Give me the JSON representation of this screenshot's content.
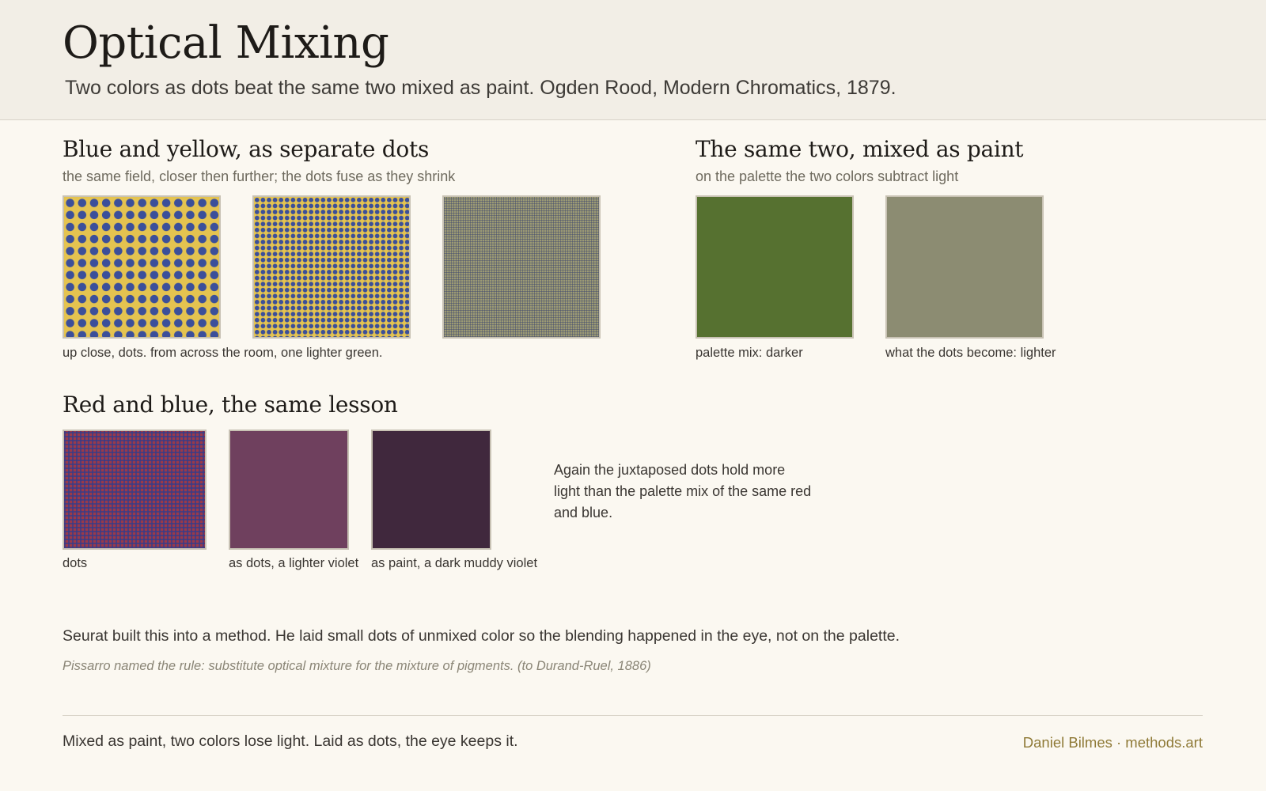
{
  "header": {
    "title": "Optical Mixing",
    "subtitle": "Two colors as dots beat the same two mixed as paint. Ogden Rood, Modern Chromatics, 1879."
  },
  "blue_yellow": {
    "heading": "Blue and yellow, as separate dots",
    "note": "the same field, closer then further; the dots fuse as they shrink",
    "caption": "up close, dots. from across the room, one lighter green.",
    "colors": {
      "yellow": "#e4c350",
      "blue": "#3b4f9a"
    }
  },
  "paint": {
    "heading": "The same two, mixed as paint",
    "note": "on the palette the two colors subtract light",
    "swatches": [
      {
        "caption": "palette mix: darker",
        "color": "#567130"
      },
      {
        "caption": "what the dots become: lighter",
        "color": "#8c8c72"
      }
    ]
  },
  "red_blue": {
    "heading": "Red and blue, the same lesson",
    "swatches": [
      {
        "caption": "dots"
      },
      {
        "caption": "as dots, a lighter violet",
        "color": "#6f405e"
      },
      {
        "caption": "as paint, a dark muddy violet",
        "color": "#40283d"
      }
    ],
    "paragraph": "Again the juxtaposed dots hold more light than the palette mix of the same red and blue."
  },
  "seurat": {
    "text": "Seurat built this into a method. He laid small dots of unmixed color so the blending happened in the eye, not on the palette.",
    "quote": "Pissarro named the rule: substitute optical mixture for the mixture of pigments. (to Durand-Ruel, 1886)"
  },
  "footer": {
    "text": "Mixed as paint, two colors lose light. Laid as dots, the eye keeps it.",
    "credit": "Daniel Bilmes · methods.art"
  }
}
